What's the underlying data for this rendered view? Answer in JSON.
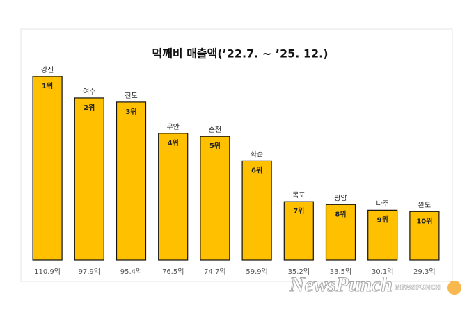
{
  "chart_data": {
    "type": "bar",
    "title": "먹깨비 매출액(’22.7. ~ ’25. 12.)",
    "categories": [
      "강진",
      "여수",
      "진도",
      "무안",
      "순천",
      "화순",
      "목포",
      "광양",
      "나주",
      "완도"
    ],
    "values": [
      110.9,
      97.9,
      95.4,
      76.5,
      74.7,
      59.9,
      35.2,
      33.5,
      30.1,
      29.3
    ],
    "value_labels": [
      "110.9억",
      "97.9억",
      "95.4억",
      "76.5억",
      "74.7억",
      "59.9억",
      "35.2억",
      "33.5억",
      "30.1억",
      "29.3억"
    ],
    "rank_labels": [
      "1위",
      "2위",
      "3위",
      "4위",
      "5위",
      "6위",
      "7위",
      "8위",
      "9위",
      "10위"
    ],
    "color": "#FFC000"
  },
  "watermark": {
    "main": "NewsPunch",
    "small": "NEWSPUNCH"
  }
}
